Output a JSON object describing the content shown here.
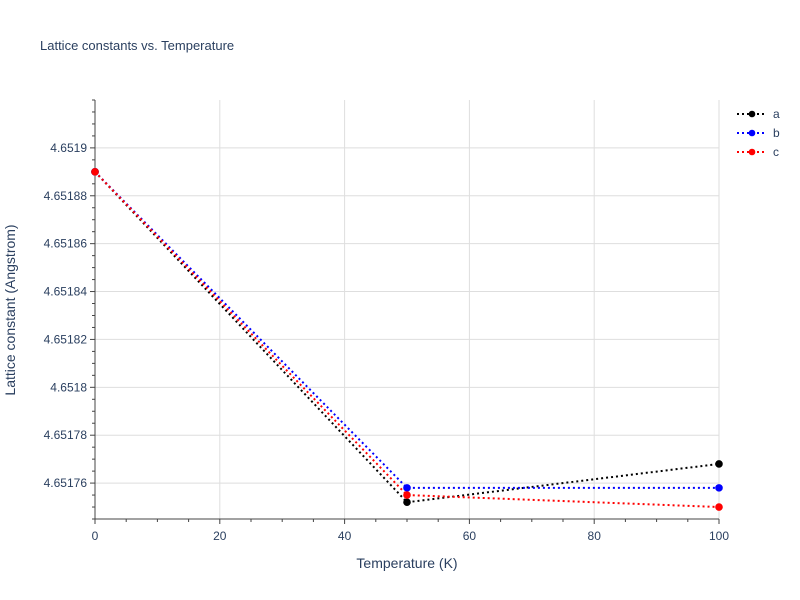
{
  "chart_data": {
    "type": "line",
    "title": "Lattice constants vs. Temperature",
    "xlabel": "Temperature (K)",
    "ylabel": "Lattice constant (Angstrom)",
    "x": [
      0,
      50,
      100
    ],
    "xlim": [
      0,
      100
    ],
    "ylim": [
      4.651745,
      4.65192
    ],
    "xticks": [
      0,
      20,
      40,
      60,
      80,
      100
    ],
    "xtick_labels": [
      "0",
      "20",
      "40",
      "60",
      "80",
      "100"
    ],
    "yticks": [
      4.65176,
      4.65178,
      4.6518,
      4.65182,
      4.65184,
      4.65186,
      4.65188,
      4.6519
    ],
    "ytick_labels": [
      "4.65176",
      "4.65178",
      "4.6518",
      "4.65182",
      "4.65184",
      "4.65186",
      "4.65188",
      "4.6519"
    ],
    "grid": true,
    "legend_position": "top-right",
    "series": [
      {
        "name": "a",
        "values": [
          4.65189,
          4.651752,
          4.651768
        ],
        "color": "#000000",
        "line_style": "dotted",
        "marker": "circle"
      },
      {
        "name": "b",
        "values": [
          4.65189,
          4.651758,
          4.651758
        ],
        "color": "#0000ff",
        "line_style": "dotted",
        "marker": "circle"
      },
      {
        "name": "c",
        "values": [
          4.65189,
          4.651755,
          4.65175
        ],
        "color": "#ff0000",
        "line_style": "dotted",
        "marker": "circle"
      }
    ]
  }
}
